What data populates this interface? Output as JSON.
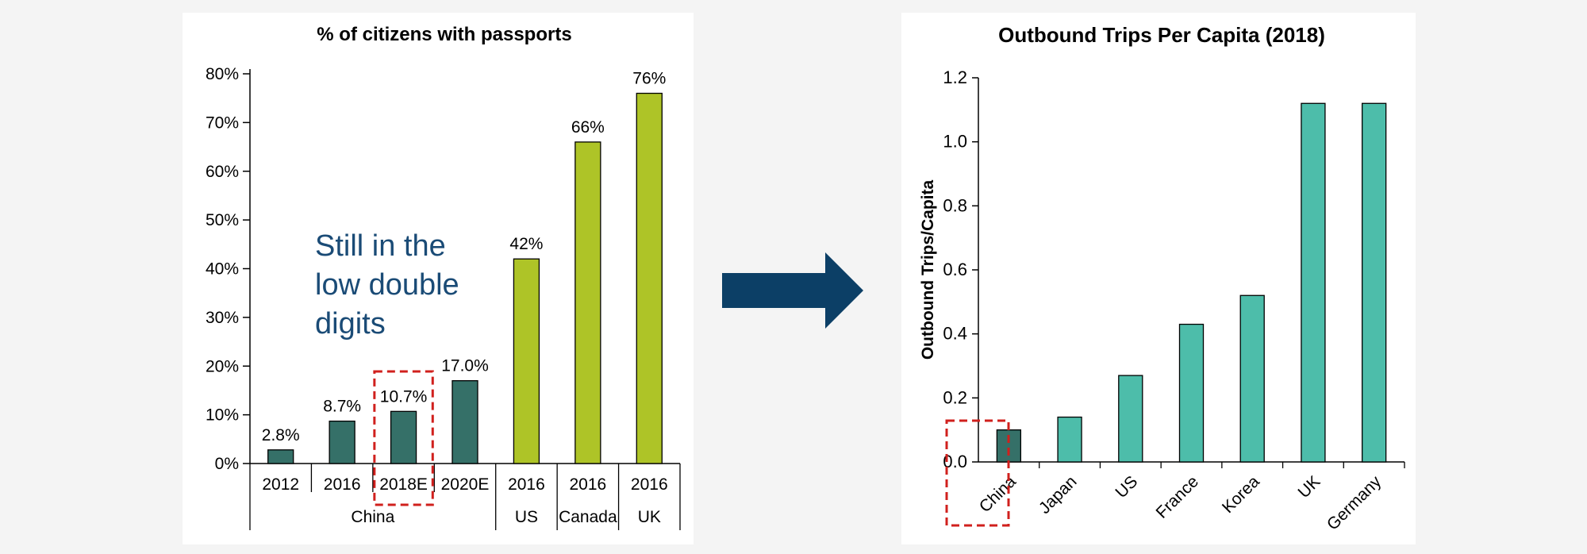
{
  "colors": {
    "dark_teal": "#357068",
    "lime": "#aec427",
    "teal": "#4dbdaa",
    "highlight_red": "#d0201d",
    "arrow_navy": "#0c3f66",
    "callout_text": "#1a4b76"
  },
  "icons": {
    "arrow": "right-arrow-icon"
  },
  "callout": {
    "lines": [
      "Still in the",
      "low double",
      "digits"
    ]
  },
  "chart_data": [
    {
      "type": "bar",
      "title": "% of citizens with passports",
      "categories": [
        "2012",
        "2016",
        "2018E",
        "2020E",
        "2016",
        "2016",
        "2016"
      ],
      "groups": [
        {
          "label": "China",
          "count": 4
        },
        {
          "label": "US",
          "count": 1
        },
        {
          "label": "Canada",
          "count": 1
        },
        {
          "label": "UK",
          "count": 1
        }
      ],
      "values": [
        2.8,
        8.7,
        10.7,
        17.0,
        42,
        66,
        76
      ],
      "data_labels": [
        "2.8%",
        "8.7%",
        "10.7%",
        "17.0%",
        "42%",
        "66%",
        "76%"
      ],
      "bar_colors": [
        "dark_teal",
        "dark_teal",
        "dark_teal",
        "dark_teal",
        "lime",
        "lime",
        "lime"
      ],
      "highlighted_index": 2,
      "ylim": [
        0,
        80
      ],
      "yticks": [
        0,
        10,
        20,
        30,
        40,
        50,
        60,
        70,
        80
      ],
      "ytick_labels": [
        "0%",
        "10%",
        "20%",
        "30%",
        "40%",
        "50%",
        "60%",
        "70%",
        "80%"
      ],
      "xlabel": "",
      "ylabel": ""
    },
    {
      "type": "bar",
      "title": "Outbound Trips Per Capita (2018)",
      "categories": [
        "China",
        "Japan",
        "US",
        "France",
        "Korea",
        "UK",
        "Germany"
      ],
      "values": [
        0.1,
        0.14,
        0.27,
        0.43,
        0.52,
        1.12,
        1.12
      ],
      "bar_colors": [
        "dark_teal",
        "teal",
        "teal",
        "teal",
        "teal",
        "teal",
        "teal"
      ],
      "highlighted_index": 0,
      "ylim": [
        0,
        1.2
      ],
      "yticks": [
        0,
        0.2,
        0.4,
        0.6,
        0.8,
        1.0,
        1.2
      ],
      "ytick_labels": [
        "0.0",
        "0.2",
        "0.4",
        "0.6",
        "0.8",
        "1.0",
        "1.2"
      ],
      "xlabel": "",
      "ylabel": "Outbound Trips/Capita"
    }
  ]
}
